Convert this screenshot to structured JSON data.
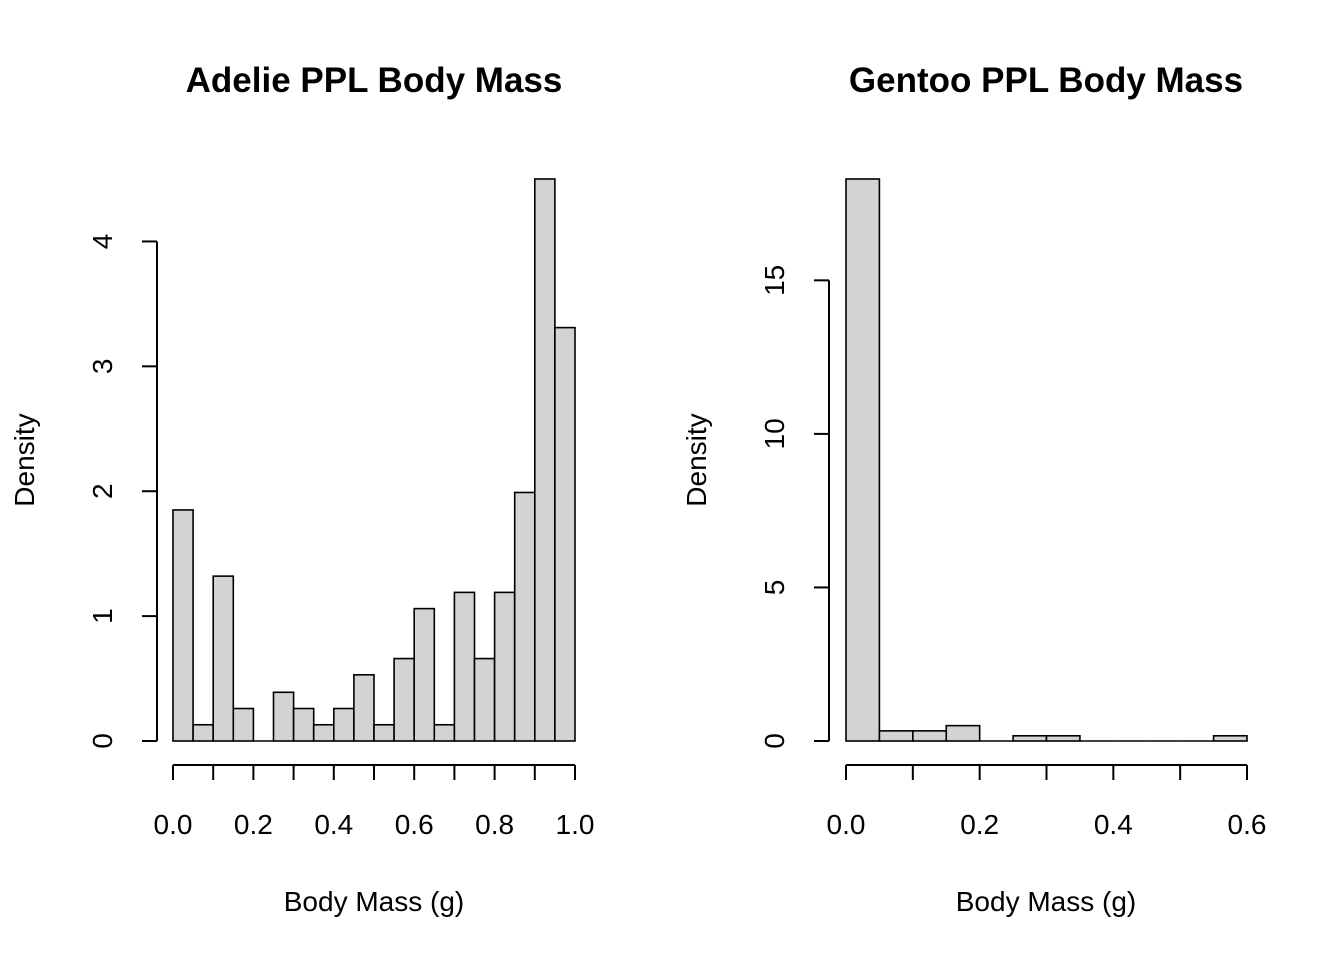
{
  "chart_data": [
    {
      "type": "bar",
      "title": "Adelie PPL Body Mass",
      "xlabel": "Body Mass (g)",
      "ylabel": "Density",
      "bin_width": 0.05,
      "bins_start": 0.0,
      "values": [
        1.85,
        0.13,
        1.32,
        0.26,
        0.0,
        0.39,
        0.26,
        0.13,
        0.26,
        0.53,
        0.13,
        0.66,
        1.06,
        0.13,
        1.19,
        0.66,
        1.19,
        1.99,
        4.5,
        3.31
      ],
      "xlim": [
        0.0,
        1.0
      ],
      "ylim": [
        0,
        4.5
      ],
      "xticks": [
        "0.0",
        "0.2",
        "0.4",
        "0.6",
        "0.8",
        "1.0"
      ],
      "yticks": [
        "0",
        "1",
        "2",
        "3",
        "4"
      ]
    },
    {
      "type": "bar",
      "title": "Gentoo PPL Body Mass",
      "xlabel": "Body Mass (g)",
      "ylabel": "Density",
      "bin_width": 0.05,
      "bins_start": 0.0,
      "values": [
        18.3,
        0.33,
        0.33,
        0.5,
        0.0,
        0.17,
        0.17,
        0.0,
        0.0,
        0.0,
        0.0,
        0.17
      ],
      "xlim": [
        0.0,
        0.6
      ],
      "ylim": [
        0,
        18.3
      ],
      "xticks": [
        "0.0",
        "0.2",
        "0.4",
        "0.6"
      ],
      "yticks": [
        "0",
        "5",
        "10",
        "15"
      ]
    }
  ]
}
